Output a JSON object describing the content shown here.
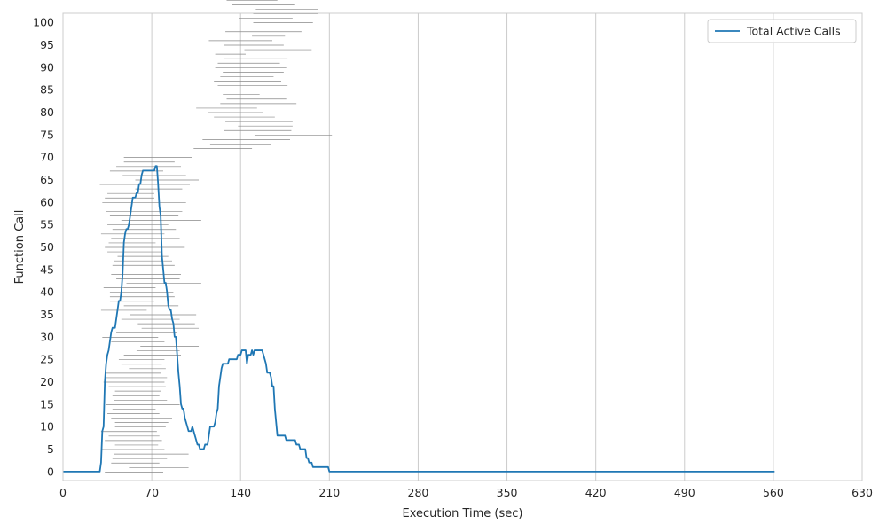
{
  "chart_data": {
    "type": "line",
    "xlabel": "Execution Time (sec)",
    "ylabel": "Function Call",
    "xlim": [
      0,
      630
    ],
    "ylim": [
      -2,
      102
    ],
    "x_ticks": [
      0,
      70,
      140,
      210,
      280,
      350,
      420,
      490,
      560,
      630
    ],
    "y_ticks": [
      0,
      5,
      10,
      15,
      20,
      25,
      30,
      35,
      40,
      45,
      50,
      55,
      60,
      65,
      70,
      75,
      80,
      85,
      90,
      95,
      100
    ],
    "grid": "vertical",
    "legend_position": "top-right",
    "colors": {
      "line": "#1f77b4",
      "interval": "#888888",
      "grid": "#cccccc",
      "frame": "#cccccc"
    },
    "series": [
      {
        "name": "Total Active Calls",
        "points": [
          [
            0,
            0
          ],
          [
            29,
            0
          ],
          [
            30,
            2
          ],
          [
            31,
            9
          ],
          [
            32,
            10
          ],
          [
            33,
            20
          ],
          [
            34,
            24
          ],
          [
            35,
            26
          ],
          [
            36,
            27
          ],
          [
            37,
            29
          ],
          [
            38,
            31
          ],
          [
            39,
            32
          ],
          [
            41,
            32
          ],
          [
            42,
            34
          ],
          [
            43,
            36
          ],
          [
            44,
            38
          ],
          [
            45,
            38
          ],
          [
            46,
            40
          ],
          [
            47,
            44
          ],
          [
            48,
            51
          ],
          [
            49,
            53
          ],
          [
            50,
            54
          ],
          [
            51,
            54
          ],
          [
            52,
            55
          ],
          [
            53,
            57
          ],
          [
            54,
            59
          ],
          [
            55,
            61
          ],
          [
            57,
            61
          ],
          [
            58,
            62
          ],
          [
            59,
            62
          ],
          [
            60,
            64
          ],
          [
            61,
            64
          ],
          [
            62,
            66
          ],
          [
            63,
            67
          ],
          [
            72,
            67
          ],
          [
            73,
            68
          ],
          [
            74,
            68
          ],
          [
            75,
            64
          ],
          [
            76,
            59
          ],
          [
            77,
            57
          ],
          [
            78,
            48
          ],
          [
            79,
            45
          ],
          [
            80,
            42
          ],
          [
            81,
            42
          ],
          [
            82,
            40
          ],
          [
            83,
            37
          ],
          [
            84,
            36
          ],
          [
            85,
            36
          ],
          [
            86,
            34
          ],
          [
            87,
            33
          ],
          [
            88,
            30
          ],
          [
            89,
            30
          ],
          [
            90,
            26
          ],
          [
            91,
            22
          ],
          [
            92,
            19
          ],
          [
            93,
            15
          ],
          [
            94,
            14
          ],
          [
            95,
            14
          ],
          [
            96,
            12
          ],
          [
            97,
            11
          ],
          [
            98,
            10
          ],
          [
            99,
            9
          ],
          [
            101,
            9
          ],
          [
            102,
            10
          ],
          [
            103,
            9
          ],
          [
            104,
            8
          ],
          [
            105,
            7
          ],
          [
            106,
            6
          ],
          [
            107,
            6
          ],
          [
            108,
            5
          ],
          [
            111,
            5
          ],
          [
            112,
            6
          ],
          [
            114,
            6
          ],
          [
            115,
            8
          ],
          [
            116,
            10
          ],
          [
            119,
            10
          ],
          [
            120,
            11
          ],
          [
            121,
            13
          ],
          [
            122,
            14
          ],
          [
            123,
            19
          ],
          [
            124,
            21
          ],
          [
            125,
            23
          ],
          [
            126,
            24
          ],
          [
            130,
            24
          ],
          [
            131,
            25
          ],
          [
            137,
            25
          ],
          [
            138,
            26
          ],
          [
            140,
            26
          ],
          [
            141,
            27
          ],
          [
            144,
            27
          ],
          [
            145,
            24
          ],
          [
            146,
            26
          ],
          [
            148,
            26
          ],
          [
            149,
            27
          ],
          [
            150,
            26
          ],
          [
            151,
            27
          ],
          [
            157,
            27
          ],
          [
            158,
            26
          ],
          [
            159,
            25
          ],
          [
            160,
            24
          ],
          [
            161,
            22
          ],
          [
            163,
            22
          ],
          [
            164,
            21
          ],
          [
            165,
            19
          ],
          [
            166,
            19
          ],
          [
            167,
            14
          ],
          [
            168,
            11
          ],
          [
            169,
            8
          ],
          [
            175,
            8
          ],
          [
            176,
            7
          ],
          [
            183,
            7
          ],
          [
            184,
            6
          ],
          [
            186,
            6
          ],
          [
            187,
            5
          ],
          [
            191,
            5
          ],
          [
            192,
            3
          ],
          [
            193,
            3
          ],
          [
            194,
            2
          ],
          [
            196,
            2
          ],
          [
            197,
            1
          ],
          [
            209,
            1
          ],
          [
            210,
            0
          ],
          [
            561,
            0
          ]
        ]
      }
    ],
    "call_intervals": [
      [
        33,
        79
      ],
      [
        52,
        99
      ],
      [
        38,
        76
      ],
      [
        39,
        82
      ],
      [
        40,
        99
      ],
      [
        30,
        80
      ],
      [
        41,
        75
      ],
      [
        33,
        78
      ],
      [
        36,
        76
      ],
      [
        30,
        74
      ],
      [
        41,
        81
      ],
      [
        41,
        83
      ],
      [
        38,
        86
      ],
      [
        35,
        76
      ],
      [
        39,
        73
      ],
      [
        34,
        92
      ],
      [
        40,
        82
      ],
      [
        39,
        76
      ],
      [
        41,
        77
      ],
      [
        36,
        81
      ],
      [
        32,
        80
      ],
      [
        33,
        82
      ],
      [
        33,
        77
      ],
      [
        52,
        81
      ],
      [
        46,
        78
      ],
      [
        44,
        80
      ],
      [
        48,
        93
      ],
      [
        58,
        92
      ],
      [
        61,
        107
      ],
      [
        38,
        80
      ],
      [
        31,
        75
      ],
      [
        42,
        90
      ],
      [
        62,
        107
      ],
      [
        59,
        104
      ],
      [
        46,
        92
      ],
      [
        53,
        105
      ],
      [
        30,
        66
      ],
      [
        48,
        91
      ],
      [
        37,
        72
      ],
      [
        37,
        88
      ],
      [
        37,
        87
      ],
      [
        32,
        73
      ],
      [
        50,
        109
      ],
      [
        42,
        92
      ],
      [
        38,
        93
      ],
      [
        47,
        97
      ],
      [
        39,
        88
      ],
      [
        40,
        86
      ],
      [
        43,
        83
      ],
      [
        35,
        77
      ],
      [
        33,
        96
      ],
      [
        36,
        73
      ],
      [
        38,
        92
      ],
      [
        30,
        80
      ],
      [
        39,
        89
      ],
      [
        35,
        83
      ],
      [
        46,
        109
      ],
      [
        37,
        91
      ],
      [
        34,
        94
      ],
      [
        39,
        82
      ],
      [
        31,
        97
      ],
      [
        33,
        72
      ],
      [
        35,
        72
      ],
      [
        57,
        94
      ],
      [
        29,
        100
      ],
      [
        57,
        107
      ],
      [
        47,
        97
      ],
      [
        37,
        79
      ],
      [
        42,
        93
      ],
      [
        48,
        88
      ],
      [
        48,
        102
      ],
      [
        102,
        150
      ],
      [
        103,
        149
      ],
      [
        116,
        164
      ],
      [
        110,
        179
      ],
      [
        151,
        212
      ],
      [
        127,
        180
      ],
      [
        138,
        181
      ],
      [
        128,
        181
      ],
      [
        119,
        167
      ],
      [
        114,
        158
      ],
      [
        105,
        153
      ],
      [
        124,
        184
      ],
      [
        129,
        176
      ],
      [
        126,
        155
      ],
      [
        120,
        173
      ],
      [
        122,
        177
      ],
      [
        119,
        172
      ],
      [
        124,
        166
      ],
      [
        126,
        174
      ],
      [
        120,
        176
      ],
      [
        122,
        171
      ],
      [
        127,
        177
      ],
      [
        120,
        144
      ],
      [
        143,
        196
      ],
      [
        127,
        174
      ],
      [
        115,
        165
      ],
      [
        149,
        175
      ],
      [
        128,
        188
      ],
      [
        135,
        158
      ],
      [
        150,
        197
      ],
      [
        139,
        181
      ],
      [
        150,
        201
      ],
      [
        152,
        201
      ],
      [
        133,
        183
      ],
      [
        129,
        169
      ],
      [
        126,
        178
      ],
      [
        127,
        179
      ],
      [
        132,
        186
      ],
      [
        124,
        176
      ],
      [
        135,
        181
      ],
      [
        155,
        202
      ],
      [
        153,
        197
      ]
    ]
  }
}
